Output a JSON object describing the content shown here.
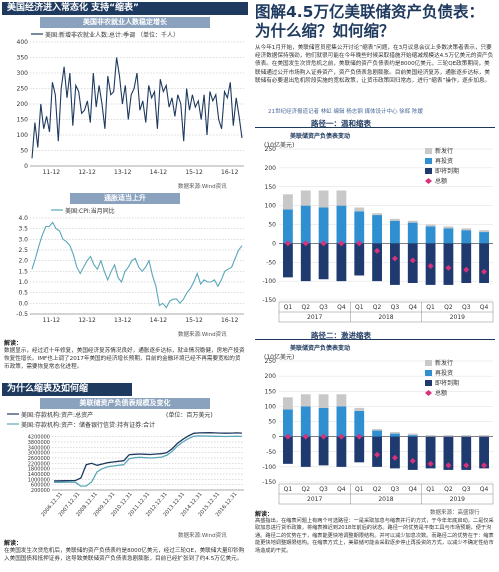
{
  "left": {
    "main_title": "美国经济进入常态化 支持“缩表”",
    "chart1": {
      "title": "美国非农就业人数稳定增长",
      "legend": "美国:新增非农就业人数:总计:季调   （单位：千人）",
      "source": "数据来源:Wind资讯"
    },
    "chart2": {
      "title": "通胀适当上升",
      "legend": "美国:CPI:当月同比",
      "source": "数据来源:Wind资讯"
    },
    "note1": {
      "label": "解读：",
      "text": "数据显示，经过近十年修复，美国经济复苏情况良好，通胀逐步达标，就业情况稳健，房地产投资恢复性增长。IMF也上调了2017年美国的经济增长预期，目前的金融环境已经不再需要宽松的货币政策，需要恢复常态化进程。"
    },
    "section2_title": "为什么缩表及如何缩",
    "chart3": {
      "title": "美联储资产负债表规模及变化",
      "legend1": "美国:存款机构:资产:总资产",
      "legend2": "美国:存款机构:资产：储备银行信贷:持有证券:合计",
      "unit": "(单位：百万美元)",
      "source": "数据来源:Wind资讯"
    },
    "note2": {
      "label": "解读：",
      "text": "在美国发生次贷危机后，美联储的资产负债表约是8000亿美元，经过三轮QE，美联储大量印钞购入美国国债和抵押证券，这导致美联储资产负债表急剧膨胀，目前已经扩张到了约4.5万亿美元。"
    }
  },
  "right": {
    "title_line1": "图解4.5万亿美联储资产负债表：",
    "title_line2": "为什么缩？如何缩？",
    "intro": "从今年1月开始，美联储官员密集公开讨论“缩表”问题，在3月议息会议上多数决策者表示，只要经济数据保持强劲，他们就很可能在今年晚些时候采取措施开始缩减规模达4.5万亿美元的资产负债表。在美国发生次贷危机之前，美联储的资产负债表约是8000亿美元，三轮QE政策期间，美联储通过公开市场购入证券资产，资产负债表急剧膨胀。目前美国经济复苏，通胀逐步达标，美联储有必要退出危机阶段实施的宽松政策，让货币政策回归常态，进行“缩表”操作，逐步加息。",
    "credit": "21世纪经济报道记者 林虹 编辑 杨志钢  媒体设计中心 徐辉 陈媛",
    "route1": {
      "title": "路径一：温和缩表",
      "subtitle": "美联储资产负债表变动",
      "unit": "(10亿美元)",
      "legend": [
        "新发行",
        "再投资",
        "即将到期",
        "总额"
      ]
    },
    "route2": {
      "title": "路径二：激进缩表",
      "subtitle": "美联储资产负债表变动",
      "unit": "(10亿美元)",
      "legend": [
        "新发行",
        "再投资",
        "即将到期",
        "总额"
      ],
      "source": "数据来源：高盛银行"
    },
    "note3": {
      "label": "解读：",
      "text": "高盛指出，在缩表问题上有两个可选路径：一是采取加息与缩表并行的方式，于今年年底启动。二是仅采取加息进行货币政策，将缩表推迟到2018年前后的状态。路径一的优势是平衡工具与市场预期，便于沟通。路径二的优势在于，缩表能更快地调整期限结构。并可以减少加息次数。而路径二的优势在于：缩表能更快地调整期限结构。在缩表方式上，美联储可能会采取逐步停止再投资的方式，以减少不确定性给市场造成的干扰。"
    }
  },
  "chart_data": [
    {
      "type": "line",
      "title": "美国非农就业人数稳定增长",
      "series": [
        {
          "name": "美国:新增非农就业人数:总计:季调",
          "values": [
            25,
            140,
            60,
            200,
            120,
            160,
            110,
            270,
            230,
            80,
            250,
            320,
            220,
            300,
            130,
            260,
            240,
            170,
            180,
            210,
            140,
            300,
            190,
            260,
            200,
            120,
            290,
            230,
            240,
            350,
            290,
            200,
            260,
            150,
            230,
            250,
            300,
            180,
            210,
            140,
            260,
            220,
            240,
            120,
            280,
            240,
            260,
            190,
            220,
            160,
            230,
            200,
            80,
            250,
            180,
            230,
            190,
            210,
            150,
            230,
            100,
            240,
            210,
            230,
            150,
            120,
            240,
            220,
            270,
            130,
            220,
            160,
            90
          ]
        }
      ],
      "x_ticks": [
        "11-12",
        "12-12",
        "13-12",
        "14-12",
        "15-12",
        "16-12"
      ],
      "ylim": [
        0,
        400
      ],
      "y_ticks": [
        0,
        50,
        100,
        150,
        200,
        250,
        300,
        350,
        400
      ]
    },
    {
      "type": "line",
      "title": "通胀适当上升",
      "series": [
        {
          "name": "美国:CPI:当月同比",
          "values": [
            1.6,
            2.1,
            2.7,
            3.2,
            3.6,
            3.6,
            3.8,
            3.5,
            3.4,
            3.0,
            2.9,
            2.7,
            2.3,
            1.7,
            1.4,
            1.7,
            2.0,
            2.2,
            1.8,
            1.6,
            2.0,
            1.5,
            1.1,
            1.5,
            1.8,
            1.2,
            1.0,
            1.5,
            1.7,
            2.0,
            2.1,
            1.7,
            1.5,
            1.7,
            2.0,
            1.3,
            0.8,
            -0.1,
            0.0,
            -0.2,
            0.1,
            0.2,
            0.2,
            0.0,
            0.2,
            0.5,
            0.7,
            1.0,
            1.4,
            0.9,
            1.1,
            1.0,
            1.0,
            1.1,
            0.8,
            1.1,
            1.5,
            1.6,
            1.7,
            2.1,
            2.5,
            2.7
          ]
        }
      ],
      "x_ticks": [
        "11-12",
        "12-12",
        "13-12",
        "14-12",
        "15-12",
        "16-12"
      ],
      "ylim": [
        -0.5,
        4.0
      ],
      "y_ticks": [
        -0.5,
        0.0,
        0.5,
        1.0,
        1.5,
        2.0,
        2.5,
        3.0,
        3.5,
        4.0
      ]
    },
    {
      "type": "line",
      "title": "美联储资产负债表规模及变化",
      "series": [
        {
          "name": "美国:存款机构:资产:总资产",
          "values": [
            880000,
            890000,
            900000,
            905000,
            910000,
            1100000,
            2100000,
            2200000,
            2050000,
            2150000,
            2250000,
            2300000,
            2350000,
            2400000,
            2850000,
            2880000,
            2900000,
            2880000,
            2860000,
            2900000,
            2920000,
            3000000,
            3300000,
            3700000,
            4000000,
            4250000,
            4450000,
            4480000,
            4490000,
            4500000,
            4480000,
            4470000,
            4460000,
            4470000,
            4480000,
            4470000
          ]
        },
        {
          "name": "美国:存款机构:资产：储备银行信贷:持有证券:合计",
          "values": [
            780000,
            780000,
            785000,
            790000,
            780000,
            490000,
            500000,
            800000,
            1550000,
            1800000,
            1950000,
            2000000,
            2050000,
            2100000,
            2550000,
            2620000,
            2650000,
            2620000,
            2600000,
            2630000,
            2670000,
            2800000,
            3100000,
            3500000,
            3800000,
            4050000,
            4230000,
            4260000,
            4250000,
            4240000,
            4230000,
            4220000,
            4210000,
            4220000,
            4230000,
            4220000
          ]
        }
      ],
      "x_ticks": [
        "2006.12.31",
        "2007.12.31",
        "2008.12.31",
        "2009.12.31",
        "2010.12.31",
        "2011.12.31",
        "2012.12.31",
        "2013.12.31",
        "2014.12.31",
        "2015.12.31",
        "2016.12.31"
      ],
      "ylim": [
        200000,
        4400000
      ],
      "y_ticks": [
        200000,
        600000,
        1000000,
        1400000,
        1800000,
        2200000,
        2600000,
        3000000,
        3400000,
        3800000,
        4200000
      ]
    },
    {
      "type": "bar",
      "title": "路径一：温和缩表",
      "categories": [
        "Q1",
        "Q2",
        "Q3",
        "Q4",
        "Q1",
        "Q2",
        "Q3",
        "Q4",
        "Q1",
        "Q2",
        "Q3",
        "Q4"
      ],
      "years": [
        "2017",
        "2018",
        "2019"
      ],
      "series": [
        {
          "name": "新发行",
          "values": [
            40,
            40,
            45,
            40,
            10,
            5,
            5,
            5,
            5,
            5,
            5,
            5
          ]
        },
        {
          "name": "再投资",
          "values": [
            90,
            100,
            95,
            100,
            85,
            75,
            60,
            55,
            45,
            40,
            35,
            30
          ]
        },
        {
          "name": "即将到期",
          "values": [
            -90,
            -100,
            -95,
            -100,
            -85,
            -100,
            -110,
            -105,
            -110,
            -110,
            -105,
            -105
          ]
        },
        {
          "name": "总额",
          "values": [
            0,
            0,
            0,
            0,
            0,
            -20,
            -40,
            -45,
            -60,
            -65,
            -70,
            -75
          ]
        }
      ],
      "ylim": [
        -150,
        250
      ],
      "y_ticks": [
        -150,
        -100,
        -50,
        0,
        50,
        100,
        150,
        200,
        250
      ]
    },
    {
      "type": "bar",
      "title": "路径二：激进缩表",
      "categories": [
        "Q1",
        "Q2",
        "Q3",
        "Q4",
        "Q1",
        "Q2",
        "Q3",
        "Q4",
        "Q1",
        "Q2",
        "Q3",
        "Q4"
      ],
      "years": [
        "2017",
        "2018",
        "2019"
      ],
      "series": [
        {
          "name": "新发行",
          "values": [
            40,
            40,
            45,
            40,
            10,
            5,
            5,
            5,
            5,
            5,
            5,
            5
          ]
        },
        {
          "name": "再投资",
          "values": [
            90,
            100,
            95,
            100,
            85,
            20,
            10,
            5,
            0,
            0,
            0,
            0
          ]
        },
        {
          "name": "即将到期",
          "values": [
            -90,
            -100,
            -95,
            -100,
            -85,
            -100,
            -105,
            -110,
            -105,
            -110,
            -110,
            -105
          ]
        },
        {
          "name": "总额",
          "values": [
            0,
            0,
            0,
            0,
            0,
            -60,
            -70,
            -80,
            -90,
            -95,
            -95,
            -95
          ]
        }
      ],
      "ylim": [
        -150,
        250
      ],
      "y_ticks": [
        -150,
        -100,
        -50,
        0,
        50,
        100,
        150,
        200,
        250
      ]
    }
  ]
}
